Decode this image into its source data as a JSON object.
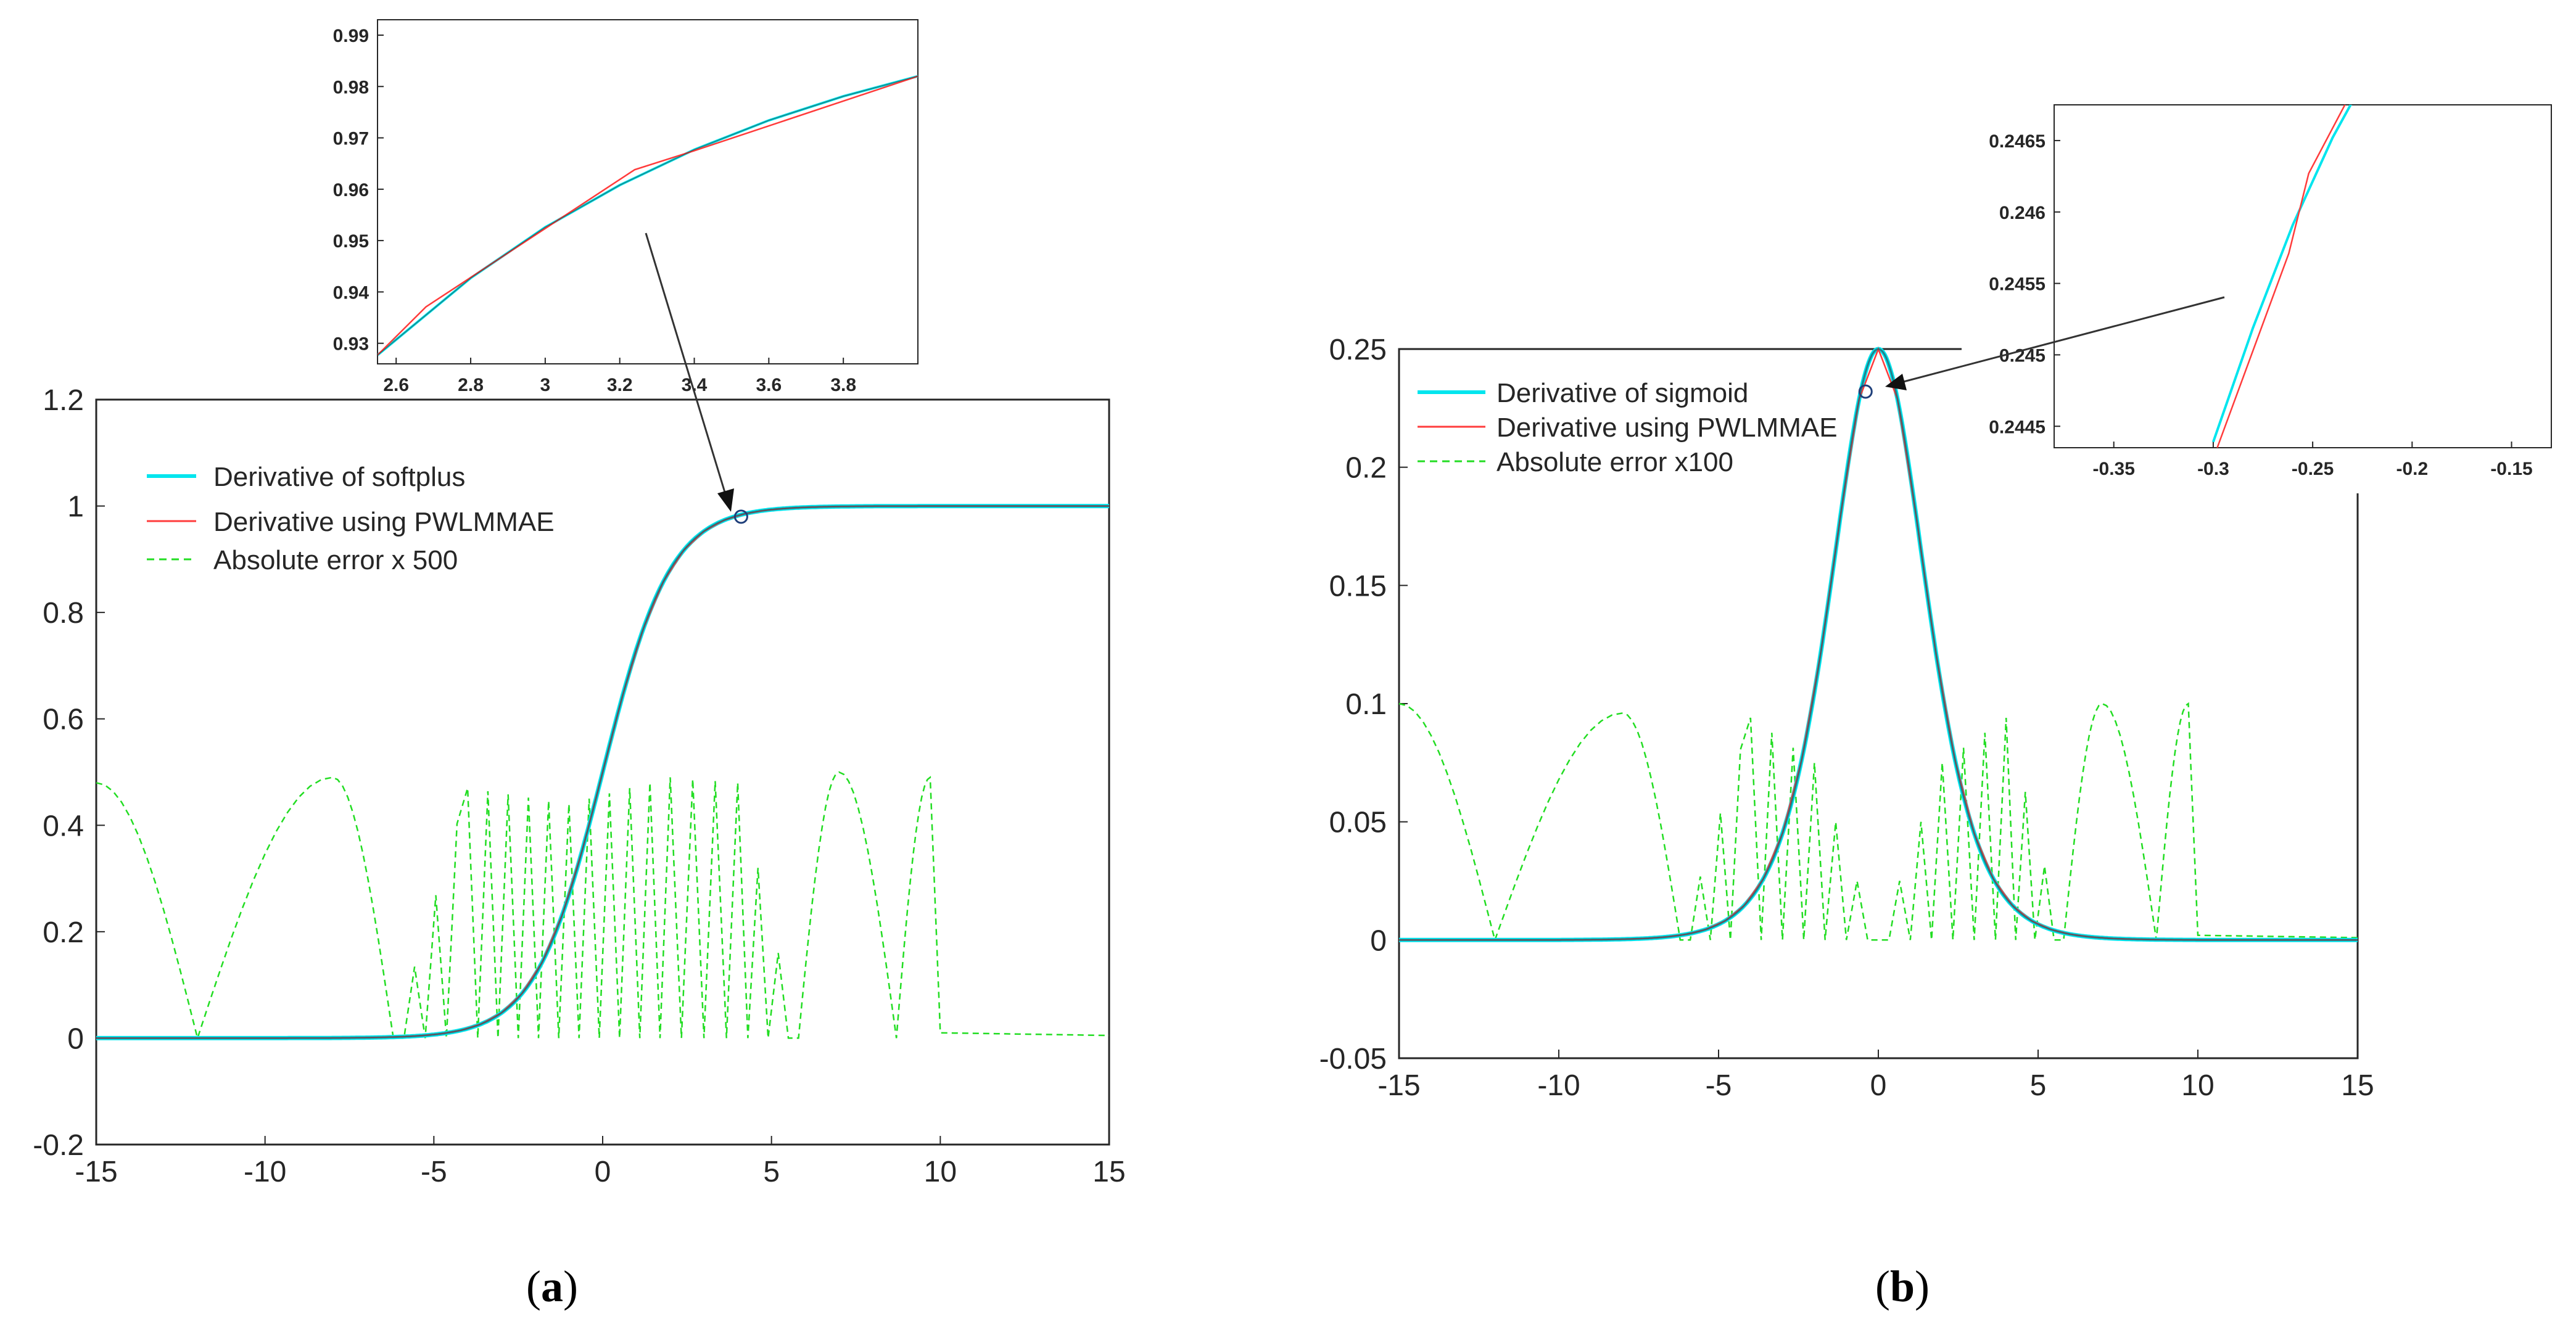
{
  "chart_data": [
    {
      "id": "a",
      "type": "line",
      "caption": "a",
      "xlim": [
        -15,
        15
      ],
      "ylim": [
        -0.2,
        1.2
      ],
      "xticks": [
        "-15",
        "-10",
        "-5",
        "0",
        "5",
        "10",
        "15"
      ],
      "yticks": [
        "-0.2",
        "0",
        "0.2",
        "0.4",
        "0.6",
        "0.8",
        "1",
        "1.2"
      ],
      "legend": [
        "Derivative of softplus",
        "Derivative using PWLMMAE",
        "Absolute error x 500"
      ],
      "series": [
        {
          "name": "Derivative of softplus",
          "function": "sigmoid(x)",
          "color": "#00e5ee",
          "style": "solid"
        },
        {
          "name": "Derivative using PWLMMAE",
          "function": "piecewise-linear approximation of sigmoid(x)",
          "color": "#ff3b3b",
          "style": "solid"
        },
        {
          "name": "Absolute error x 500",
          "color": "#22dd22",
          "style": "dashed",
          "envelope": {
            "x": [
              -15,
              -12,
              -8,
              -6.2,
              -4,
              -1,
              2,
              4,
              5.8,
              7,
              8.7,
              9.7,
              10,
              15
            ],
            "y": [
              0.48,
              0,
              0.49,
              0,
              0.47,
              0.44,
              0.49,
              0.48,
              0,
              0.5,
              0,
              0.49,
              0.01,
              0.005
            ]
          }
        }
      ],
      "marker": {
        "x": 4.1,
        "y": 0.98
      },
      "inset": {
        "xlim": [
          2.55,
          4.0
        ],
        "ylim": [
          0.926,
          0.993
        ],
        "xticks": [
          "2.6",
          "2.8",
          "3",
          "3.2",
          "3.4",
          "3.6",
          "3.8"
        ],
        "yticks": [
          "0.93",
          "0.94",
          "0.95",
          "0.96",
          "0.97",
          "0.98",
          "0.99"
        ],
        "true_curve": {
          "x": [
            2.55,
            2.8,
            3.0,
            3.2,
            3.4,
            3.6,
            3.8,
            4.0
          ],
          "y": [
            0.9277,
            0.9427,
            0.9526,
            0.9608,
            0.9677,
            0.9734,
            0.9781,
            0.982
          ]
        },
        "approx_curve": {
          "x": [
            2.55,
            2.68,
            3.24,
            3.4,
            4.0
          ],
          "y": [
            0.9277,
            0.9371,
            0.9638,
            0.9675,
            0.982
          ]
        }
      }
    },
    {
      "id": "b",
      "type": "line",
      "caption": "b",
      "xlim": [
        -15,
        15
      ],
      "ylim": [
        -0.05,
        0.25
      ],
      "xticks": [
        "-15",
        "-10",
        "-5",
        "0",
        "5",
        "10",
        "15"
      ],
      "yticks": [
        "-0.05",
        "0",
        "0.05",
        "0.1",
        "0.15",
        "0.2",
        "0.25"
      ],
      "legend": [
        "Derivative of sigmoid",
        "Derivative using PWLMMAE",
        "Absolute error x100"
      ],
      "series": [
        {
          "name": "Derivative of sigmoid",
          "function": "sigmoid(x)*(1-sigmoid(x))",
          "color": "#00e5ee",
          "style": "solid"
        },
        {
          "name": "Derivative using PWLMMAE",
          "function": "piecewise-linear approximation",
          "color": "#ff3b3b",
          "style": "solid"
        },
        {
          "name": "Absolute error x100",
          "color": "#22dd22",
          "style": "dashed",
          "envelope": {
            "x": [
              -15,
              -12,
              -8,
              -6.2,
              -4,
              -2,
              0,
              2,
              4,
              5.8,
              7,
              8.7,
              9.7,
              10,
              15
            ],
            "y": [
              0.1,
              0,
              0.096,
              0,
              0.094,
              0.075,
              0,
              0.075,
              0.094,
              0,
              0.1,
              0,
              0.1,
              0.002,
              0.001
            ]
          }
        }
      ],
      "marker": {
        "x": -0.4,
        "y": 0.232
      },
      "inset": {
        "xlim": [
          -0.38,
          -0.13
        ],
        "ylim": [
          0.24435,
          0.24675
        ],
        "xticks": [
          "-0.35",
          "-0.3",
          "-0.25",
          "-0.2",
          "-0.15"
        ],
        "yticks": [
          "0.2445",
          "0.245",
          "0.2455",
          "0.246",
          "0.2465"
        ],
        "true_curve": {
          "x": [
            -0.3,
            -0.28,
            -0.26,
            -0.24,
            -0.227
          ],
          "y": [
            0.24439,
            0.24519,
            0.24591,
            0.24652,
            0.24685
          ]
        },
        "approx_curve": {
          "x": [
            -0.298,
            -0.262,
            -0.252,
            -0.23
          ],
          "y": [
            0.24435,
            0.24571,
            0.24627,
            0.24685
          ]
        }
      }
    }
  ]
}
